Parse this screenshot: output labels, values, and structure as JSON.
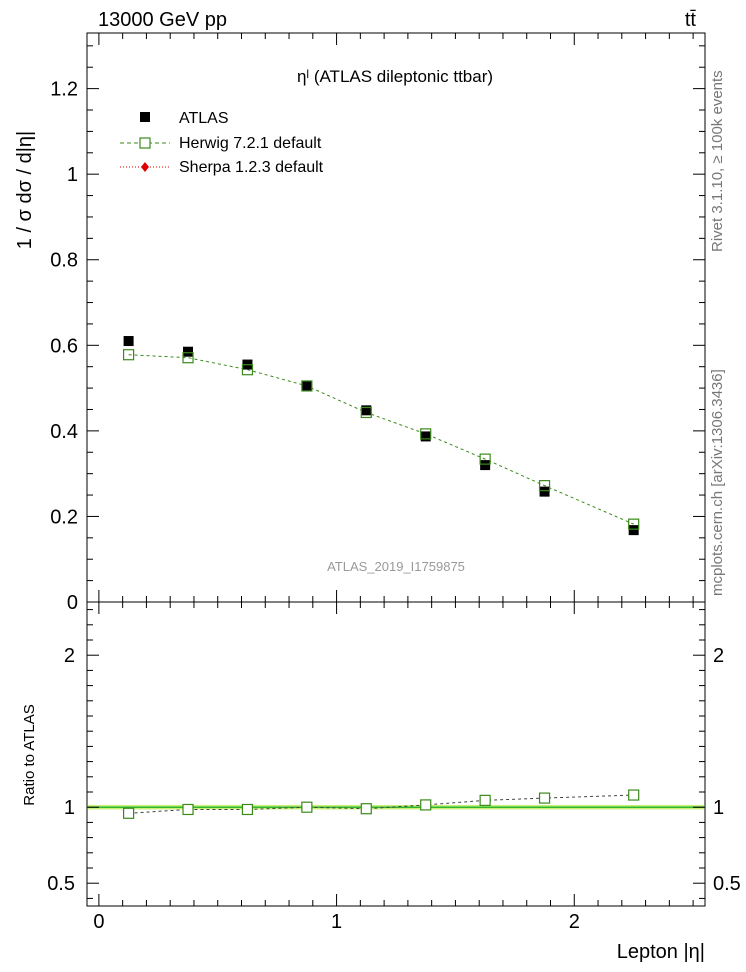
{
  "header": {
    "energy_label": "13000 GeV pp",
    "process_label": "tt̄"
  },
  "side_labels": {
    "rivet": "Rivet 3.1.10, ≥ 100k events",
    "mcplots": "mcplots.cern.ch [arXiv:1306.3436]"
  },
  "chart_data": [
    {
      "type": "scatter",
      "panel": "main",
      "title": "ηˡ (ATLAS dileptonic ttbar)",
      "analysis_id": "ATLAS_2019_I1759875",
      "xlabel": "",
      "ylabel": "1 / σ dσ / d|η|",
      "xlim": [
        -0.05,
        2.55
      ],
      "ylim": [
        0,
        1.33
      ],
      "yticks": [
        "0",
        "0.2",
        "0.4",
        "0.6",
        "0.8",
        "1",
        "1.2"
      ],
      "ytick_values": [
        0,
        0.2,
        0.4,
        0.6,
        0.8,
        1.0,
        1.2
      ],
      "legend": [
        "ATLAS",
        "Herwig 7.2.1 default",
        "Sherpa 1.2.3 default"
      ],
      "legend_position": "top-left",
      "series": [
        {
          "name": "ATLAS",
          "color": "#000000",
          "x": [
            0.125,
            0.375,
            0.625,
            0.875,
            1.125,
            1.375,
            1.625,
            1.875,
            2.25
          ],
          "y": [
            0.61,
            0.585,
            0.555,
            0.505,
            0.448,
            0.387,
            0.32,
            0.258,
            0.168
          ]
        },
        {
          "name": "Herwig 7.2.1 default",
          "color": "#3a8a1a",
          "x": [
            0.125,
            0.375,
            0.625,
            0.875,
            1.125,
            1.375,
            1.625,
            1.875,
            2.25
          ],
          "y": [
            0.578,
            0.571,
            0.543,
            0.505,
            0.443,
            0.393,
            0.334,
            0.272,
            0.182
          ]
        },
        {
          "name": "Sherpa 1.2.3 default",
          "color": "#e00000",
          "x": [],
          "y": []
        }
      ]
    },
    {
      "type": "line",
      "panel": "ratio",
      "xlabel": "Lepton |η|",
      "ylabel": "Ratio to ATLAS",
      "xlim": [
        -0.05,
        2.55
      ],
      "ylim": [
        0.35,
        2.35
      ],
      "xticks": [
        "0",
        "1",
        "2"
      ],
      "xtick_values": [
        0,
        1,
        2
      ],
      "yticks": [
        "0.5",
        "1",
        "2"
      ],
      "ytick_values": [
        0.5,
        1.0,
        2.0
      ],
      "series": [
        {
          "name": "Herwig 7.2.1 default",
          "color": "#3a8a1a",
          "x": [
            0.125,
            0.375,
            0.625,
            0.875,
            1.125,
            1.375,
            1.625,
            1.875,
            2.25
          ],
          "y": [
            0.96,
            0.985,
            0.985,
            1.0,
            0.99,
            1.015,
            1.045,
            1.06,
            1.08
          ]
        }
      ],
      "reference_band": {
        "color": "#c8f07a",
        "line_color": "#2eb82e",
        "value": 1.0,
        "halfwidth": 0.015
      }
    }
  ]
}
